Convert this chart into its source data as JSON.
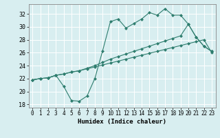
{
  "title": "",
  "xlabel": "Humidex (Indice chaleur)",
  "bg_color": "#d8eef0",
  "grid_color": "#ffffff",
  "line_color": "#2e7d6e",
  "xlim": [
    -0.5,
    23.5
  ],
  "ylim": [
    17.5,
    33.5
  ],
  "xticks": [
    0,
    1,
    2,
    3,
    4,
    5,
    6,
    7,
    8,
    9,
    10,
    11,
    12,
    13,
    14,
    15,
    16,
    17,
    18,
    19,
    20,
    21,
    22,
    23
  ],
  "yticks": [
    18,
    20,
    22,
    24,
    26,
    28,
    30,
    32
  ],
  "line1_x": [
    0,
    1,
    2,
    3,
    4,
    5,
    6,
    7,
    8,
    9,
    10,
    11,
    12,
    13,
    14,
    15,
    16,
    17,
    18,
    19,
    20,
    21,
    22,
    23
  ],
  "line1_y": [
    21.8,
    22.0,
    22.1,
    22.5,
    20.8,
    18.6,
    18.5,
    19.3,
    22.0,
    26.3,
    30.8,
    31.2,
    29.8,
    30.5,
    31.2,
    32.2,
    31.8,
    32.8,
    31.8,
    31.8,
    30.4,
    28.4,
    27.0,
    26.2
  ],
  "line2_x": [
    0,
    1,
    2,
    3,
    4,
    5,
    6,
    7,
    8,
    9,
    10,
    11,
    12,
    13,
    14,
    15,
    16,
    17,
    18,
    19,
    20,
    21,
    22,
    23
  ],
  "line2_y": [
    21.8,
    22.0,
    22.1,
    22.5,
    22.7,
    23.0,
    23.2,
    23.6,
    24.0,
    24.5,
    25.0,
    25.4,
    25.8,
    26.2,
    26.6,
    27.0,
    27.4,
    27.8,
    28.2,
    28.6,
    30.4,
    28.4,
    27.0,
    26.2
  ],
  "line3_x": [
    0,
    1,
    2,
    3,
    4,
    5,
    6,
    7,
    8,
    9,
    10,
    11,
    12,
    13,
    14,
    15,
    16,
    17,
    18,
    19,
    20,
    21,
    22,
    23
  ],
  "line3_y": [
    21.8,
    22.0,
    22.1,
    22.5,
    22.7,
    23.0,
    23.2,
    23.5,
    23.8,
    24.1,
    24.4,
    24.7,
    25.0,
    25.3,
    25.6,
    25.9,
    26.2,
    26.5,
    26.8,
    27.1,
    27.4,
    27.7,
    28.0,
    26.0
  ]
}
